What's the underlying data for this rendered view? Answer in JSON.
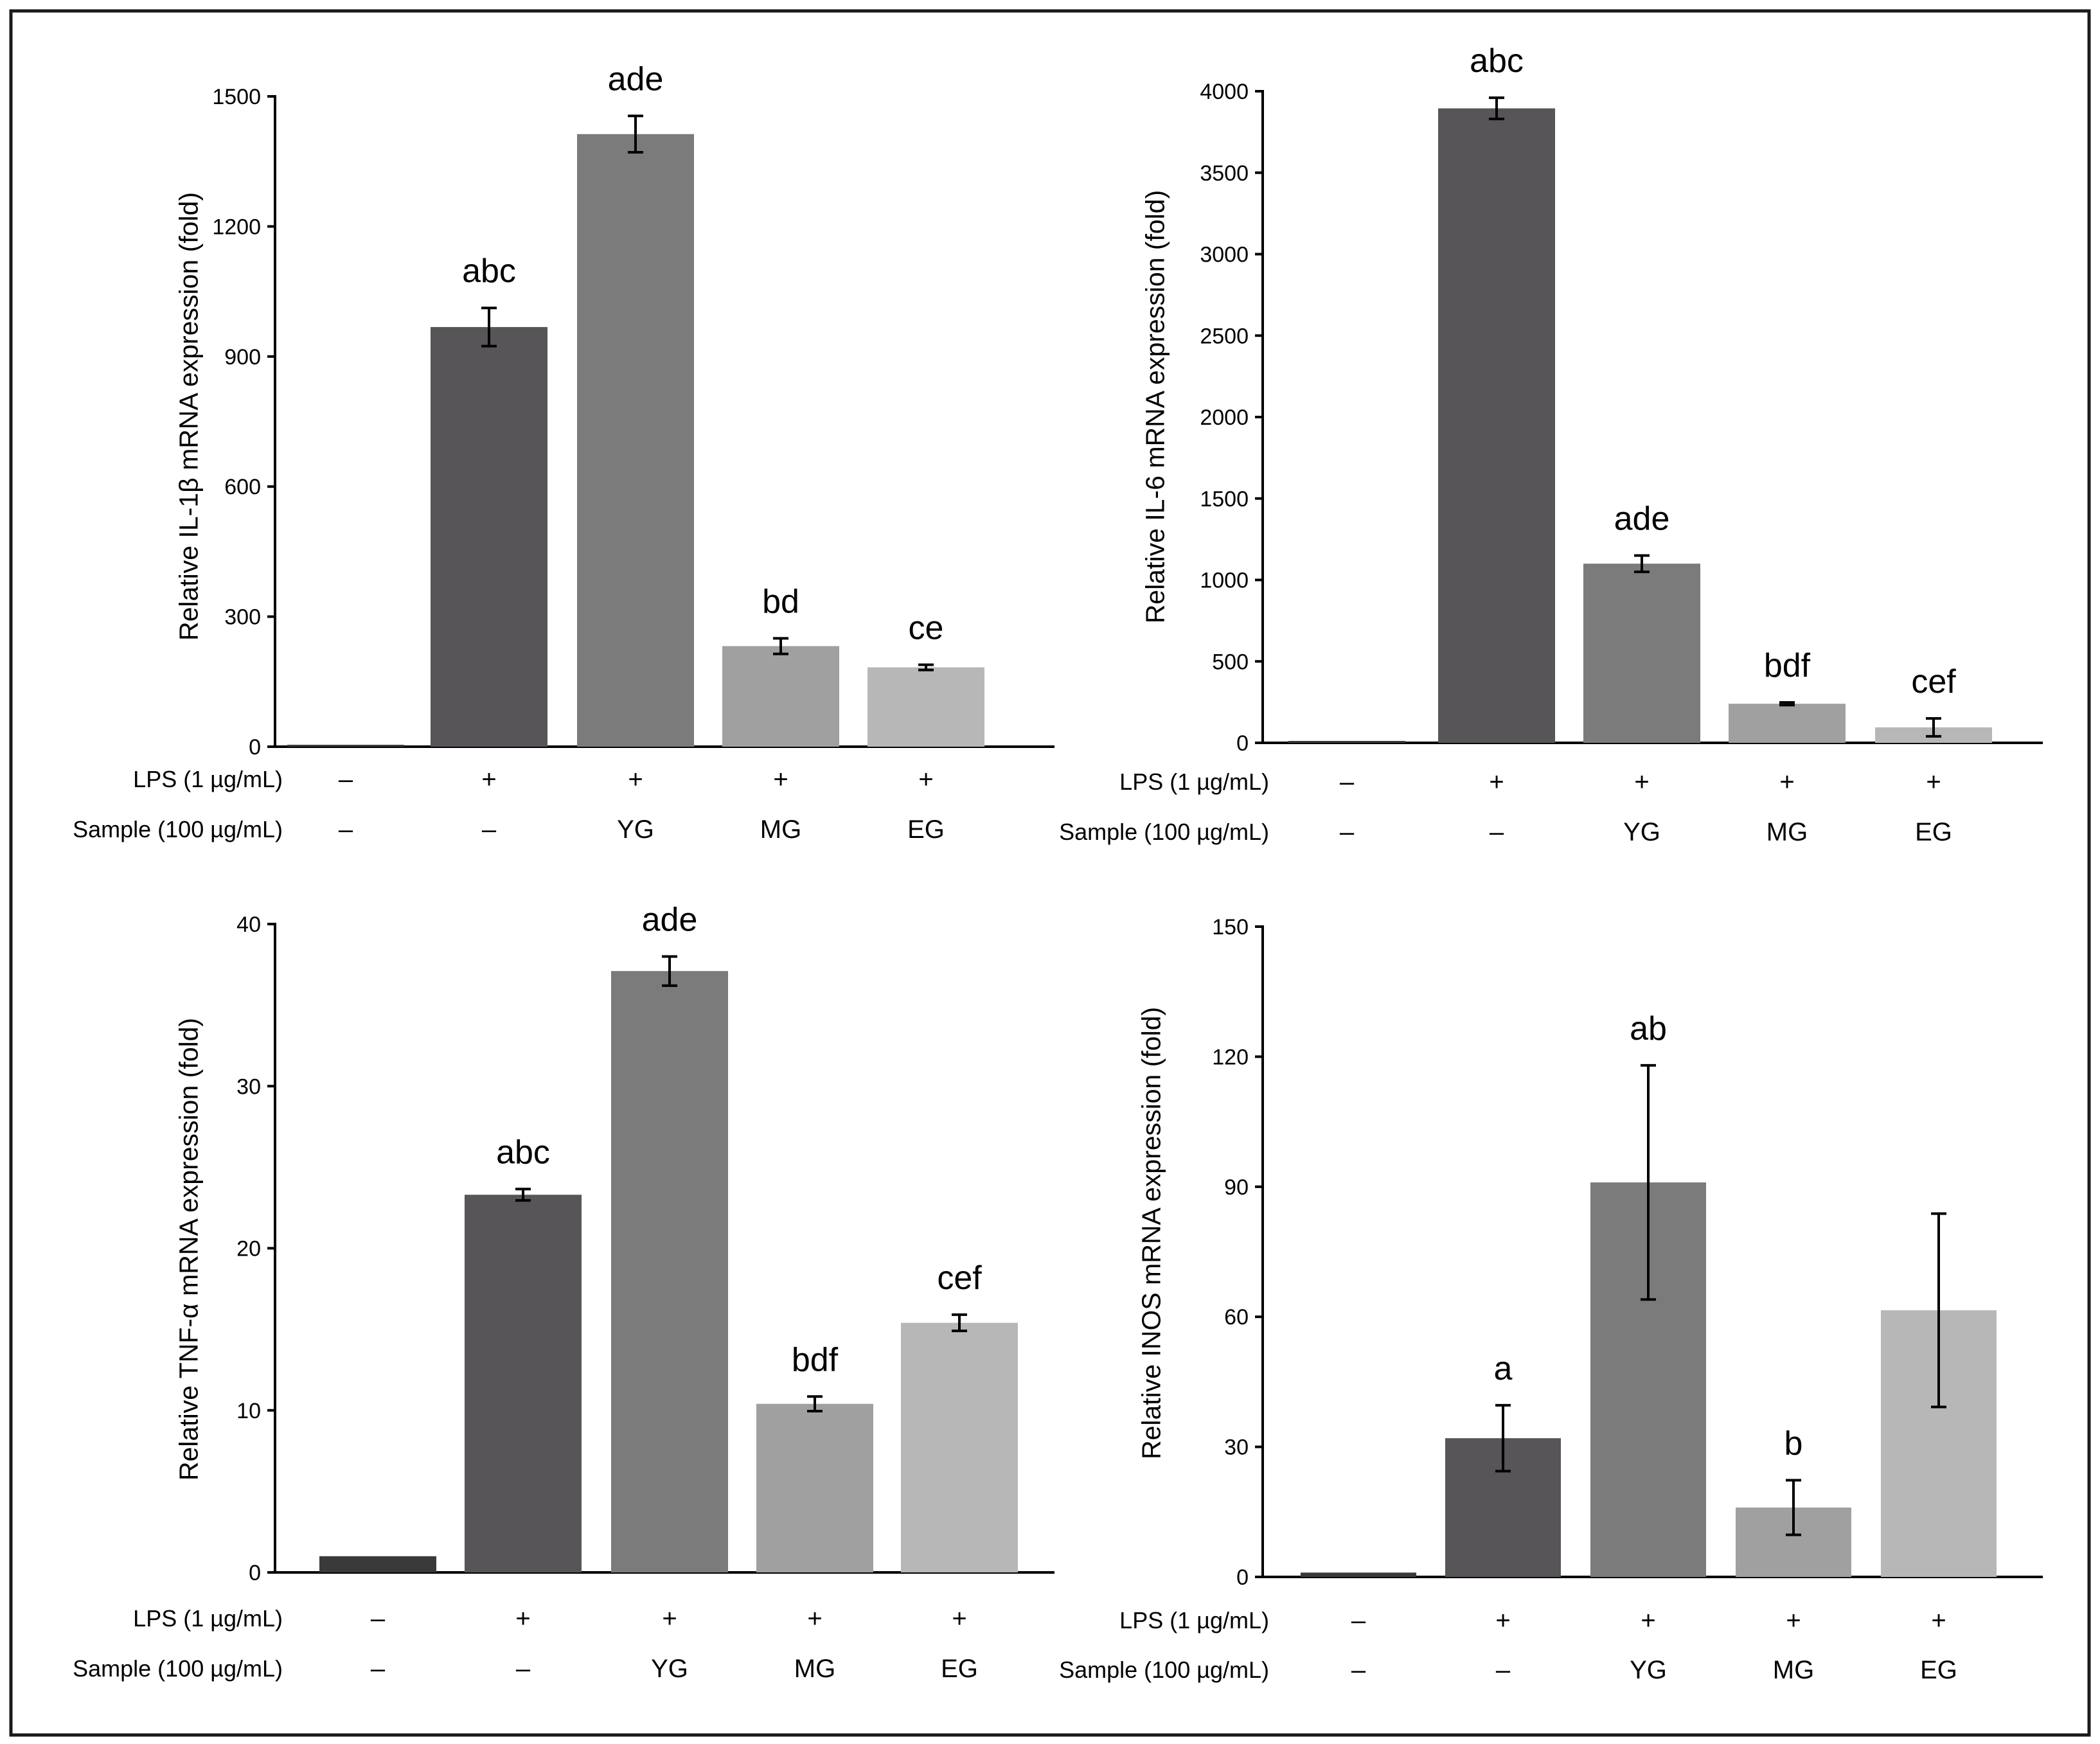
{
  "figure": {
    "bar_colors": [
      "#3a3a3a",
      "#575557",
      "#7b7b7b",
      "#9fa09f",
      "#b6b7b6"
    ]
  },
  "chart_data": [
    {
      "type": "bar",
      "ylabel": "Relative IL-1β mRNA expression (fold)",
      "ylim": [
        0,
        1500
      ],
      "yticks": [
        0,
        300,
        600,
        900,
        1200,
        1500
      ],
      "values": [
        1,
        968,
        1413,
        232,
        183
      ],
      "errors": [
        null,
        44,
        42,
        18,
        6
      ],
      "letters": [
        null,
        "abc",
        "ade",
        "bd",
        "ce"
      ],
      "rows": [
        {
          "label": "LPS (1 µg/mL)",
          "values": [
            "–",
            "+",
            "+",
            "+",
            "+"
          ]
        },
        {
          "label": "Sample (100 µg/mL)",
          "values": [
            "–",
            "–",
            "YG",
            "MG",
            "EG"
          ]
        }
      ]
    },
    {
      "type": "bar",
      "ylabel": "Relative IL-6 mRNA expression (fold)",
      "ylim": [
        0,
        4000
      ],
      "yticks": [
        0,
        500,
        1000,
        1500,
        2000,
        2500,
        3000,
        3500,
        4000
      ],
      "values": [
        1,
        3895,
        1100,
        240,
        95
      ],
      "errors": [
        null,
        65,
        50,
        8,
        55
      ],
      "letters": [
        null,
        "abc",
        "ade",
        "bdf",
        "cef"
      ],
      "rows": [
        {
          "label": "LPS (1 µg/mL)",
          "values": [
            "–",
            "+",
            "+",
            "+",
            "+"
          ]
        },
        {
          "label": "Sample (100 µg/mL)",
          "values": [
            "–",
            "–",
            "YG",
            "MG",
            "EG"
          ]
        }
      ]
    },
    {
      "type": "bar",
      "ylabel": "Relative TNF-α mRNA expression (fold)",
      "ylim": [
        0,
        40
      ],
      "yticks": [
        0,
        10,
        20,
        30,
        40
      ],
      "values": [
        1,
        23.3,
        37.1,
        10.4,
        15.4
      ],
      "errors": [
        null,
        0.35,
        0.9,
        0.45,
        0.5
      ],
      "letters": [
        null,
        "abc",
        "ade",
        "bdf",
        "cef"
      ],
      "rows": [
        {
          "label": "LPS (1 µg/mL)",
          "values": [
            "–",
            "+",
            "+",
            "+",
            "+"
          ]
        },
        {
          "label": "Sample (100 µg/mL)",
          "values": [
            "–",
            "–",
            "YG",
            "MG",
            "EG"
          ]
        }
      ]
    },
    {
      "type": "bar",
      "ylabel": "Relative INOS mRNA expression (fold)",
      "ylim": [
        0,
        150
      ],
      "yticks": [
        0,
        30,
        60,
        90,
        120,
        150
      ],
      "values": [
        1,
        32,
        91,
        16,
        61.5
      ],
      "errors": [
        null,
        7.6,
        27,
        6.3,
        22.3
      ],
      "letters": [
        null,
        "a",
        "ab",
        "b",
        null
      ],
      "rows": [
        {
          "label": "LPS (1 µg/mL)",
          "values": [
            "–",
            "+",
            "+",
            "+",
            "+"
          ]
        },
        {
          "label": "Sample (100 µg/mL)",
          "values": [
            "–",
            "–",
            "YG",
            "MG",
            "EG"
          ]
        }
      ]
    }
  ]
}
